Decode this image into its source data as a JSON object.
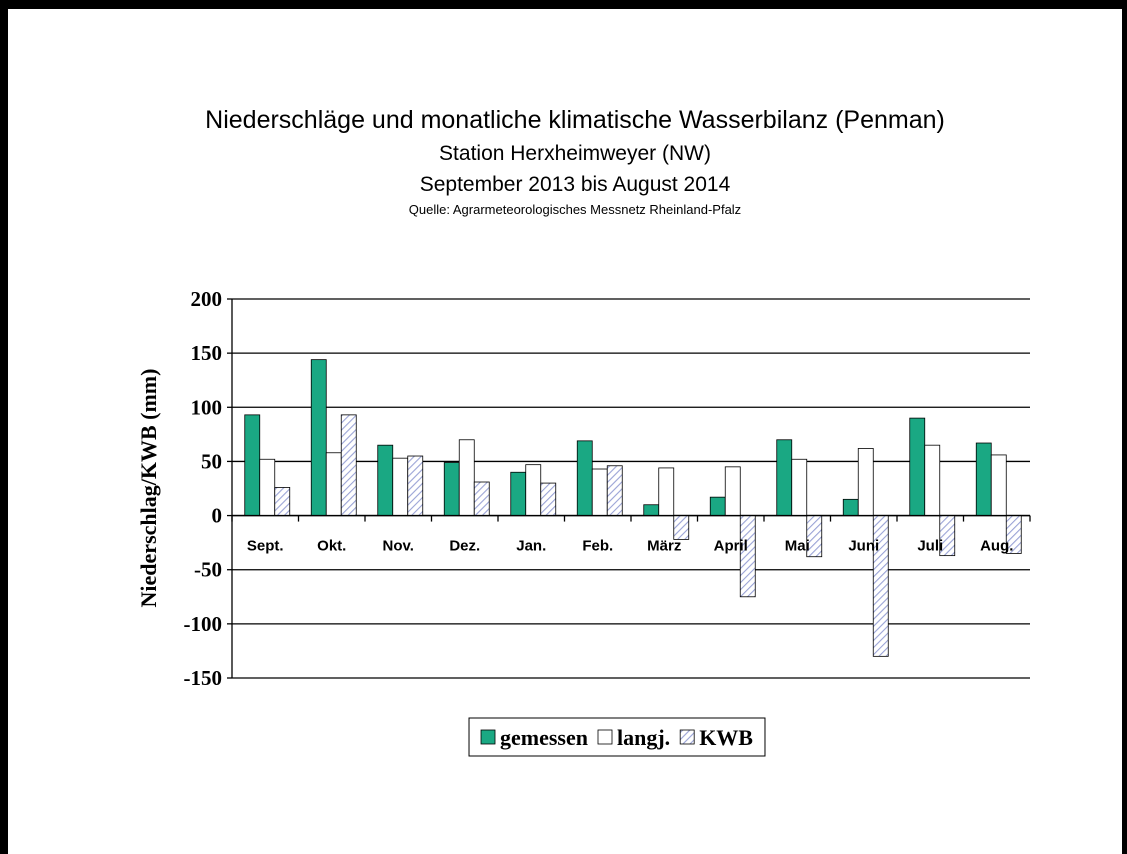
{
  "chart_data": {
    "type": "bar",
    "title": "Niederschläge und monatliche klimatische Wasserbilanz (Penman)",
    "subtitle": [
      "Station Herxheimweyer (NW)",
      "September 2013 bis August 2014"
    ],
    "source": "Quelle: Agrarmeteorologisches Messnetz Rheinland-Pfalz",
    "y_label": "Niederschlag/KWB (mm)",
    "categories": [
      "Sept.",
      "Okt.",
      "Nov.",
      "Dez.",
      "Jan.",
      "Feb.",
      "März",
      "April",
      "Mai",
      "Juni",
      "Juli",
      "Aug."
    ],
    "series": [
      {
        "name": "gemessen",
        "color": "#1aa883",
        "values": [
          93,
          144,
          65,
          49,
          40,
          69,
          10,
          17,
          70,
          15,
          90,
          67
        ]
      },
      {
        "name": "langj.",
        "color": "#ffffff",
        "values": [
          52,
          58,
          53,
          70,
          47,
          43,
          44,
          45,
          52,
          62,
          65,
          56
        ]
      },
      {
        "name": "KWB",
        "color": "#9aa3d6",
        "pattern": "hatch",
        "values": [
          26,
          93,
          55,
          31,
          30,
          46,
          -22,
          -75,
          -38,
          -130,
          -37,
          -35
        ]
      }
    ],
    "ylim": [
      -150,
      200
    ],
    "yticks": [
      -150,
      -100,
      -50,
      0,
      50,
      100,
      150,
      200
    ],
    "grid": true,
    "legend": "bottom"
  }
}
